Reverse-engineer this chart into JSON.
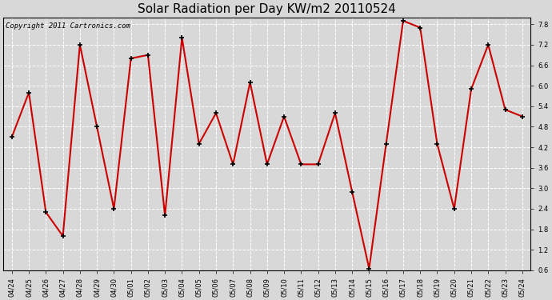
{
  "title": "Solar Radiation per Day KW/m2 20110524",
  "copyright_text": "Copyright 2011 Cartronics.com",
  "dates": [
    "04/24",
    "04/25",
    "04/26",
    "04/27",
    "04/28",
    "04/29",
    "04/30",
    "05/01",
    "05/02",
    "05/03",
    "05/04",
    "05/05",
    "05/06",
    "05/07",
    "05/08",
    "05/09",
    "05/10",
    "05/11",
    "05/12",
    "05/13",
    "05/14",
    "05/15",
    "05/16",
    "05/17",
    "05/18",
    "05/19",
    "05/20",
    "05/21",
    "05/22",
    "05/23",
    "05/24"
  ],
  "values": [
    4.5,
    5.8,
    2.3,
    1.6,
    7.2,
    4.8,
    2.4,
    6.8,
    6.9,
    2.2,
    7.4,
    4.3,
    5.2,
    3.7,
    6.1,
    3.7,
    5.1,
    3.7,
    3.7,
    5.2,
    2.9,
    0.65,
    4.3,
    7.9,
    7.7,
    4.3,
    2.4,
    5.9,
    7.2,
    5.3,
    5.1
  ],
  "line_color": "#cc0000",
  "marker": "+",
  "marker_color": "#000000",
  "marker_size": 5,
  "line_width": 1.5,
  "ylim": [
    0.6,
    8.0
  ],
  "yticks": [
    0.6,
    1.2,
    1.8,
    2.4,
    3.0,
    3.6,
    4.2,
    4.8,
    5.4,
    6.0,
    6.6,
    7.2,
    7.8
  ],
  "bg_color": "#d8d8d8",
  "grid_color": "#ffffff",
  "title_fontsize": 11,
  "copyright_fontsize": 6.5,
  "tick_fontsize": 6,
  "spine_color": "#000000"
}
